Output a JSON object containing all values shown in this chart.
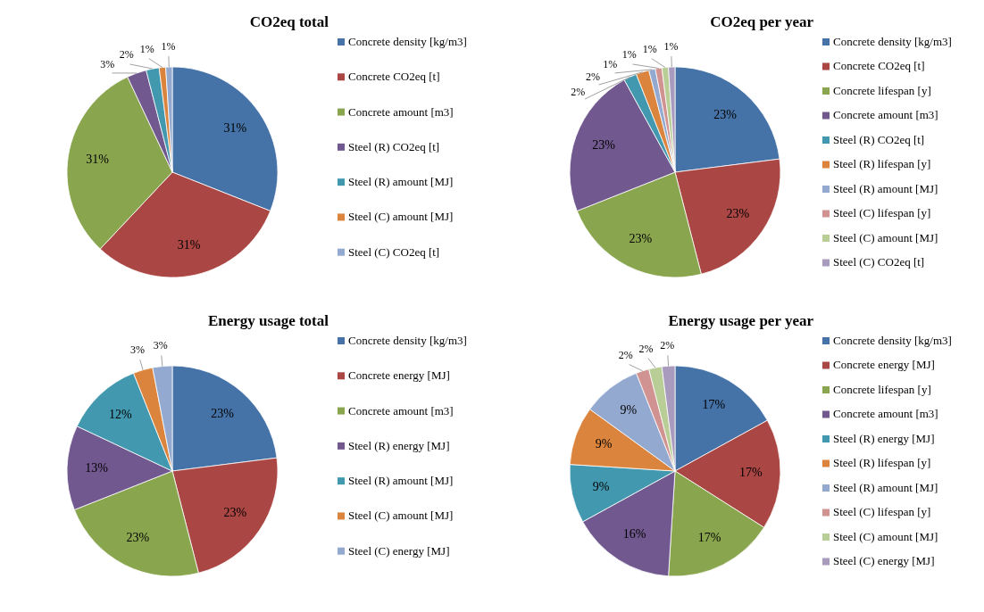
{
  "chart_data": [
    {
      "type": "pie",
      "title": "CO2eq total",
      "categories": [
        "Concrete density [kg/m3]",
        "Concrete CO2eq [t]",
        "Concrete amount [m3]",
        "Steel (R) CO2eq [t]",
        "Steel (R) amount [MJ]",
        "Steel (C) amount [MJ]",
        "Steel (C) CO2eq [t]"
      ],
      "values": [
        31,
        31,
        31,
        3,
        2,
        1,
        1
      ],
      "value_labels": [
        "31%",
        "31%",
        "31%",
        "3%",
        "2%",
        "1%",
        "1%"
      ],
      "colors": [
        "#4572a7",
        "#aa4643",
        "#89a54e",
        "#71588f",
        "#4198af",
        "#db843d",
        "#93a9cf"
      ],
      "legend": "right"
    },
    {
      "type": "pie",
      "title": "CO2eq per year",
      "categories": [
        "Concrete density [kg/m3]",
        "Concrete CO2eq [t]",
        "Concrete lifespan [y]",
        "Concrete amount [m3]",
        "Steel (R) CO2eq [t]",
        "Steel (R) lifespan [y]",
        "Steel (R) amount [MJ]",
        "Steel (C) lifespan [y]",
        "Steel (C) amount [MJ]",
        "Steel (C) CO2eq [t]"
      ],
      "values": [
        23,
        23,
        23,
        23,
        2,
        2,
        1,
        1,
        1,
        1
      ],
      "value_labels": [
        "23%",
        "23%",
        "23%",
        "23%",
        "2%",
        "2%",
        "1%",
        "1%",
        "1%",
        "1%"
      ],
      "colors": [
        "#4572a7",
        "#aa4643",
        "#89a54e",
        "#71588f",
        "#4198af",
        "#db843d",
        "#93a9cf",
        "#d19392",
        "#b9cd96",
        "#a99bbd"
      ],
      "legend": "right"
    },
    {
      "type": "pie",
      "title": "Energy usage total",
      "categories": [
        "Concrete density [kg/m3]",
        "Concrete energy [MJ]",
        "Concrete amount [m3]",
        "Steel (R) energy [MJ]",
        "Steel (R) amount [MJ]",
        "Steel (C) amount [MJ]",
        "Steel (C) energy [MJ]"
      ],
      "values": [
        23,
        23,
        23,
        13,
        12,
        3,
        3
      ],
      "value_labels": [
        "23%",
        "23%",
        "23%",
        "13%",
        "12%",
        "3%",
        "3%"
      ],
      "colors": [
        "#4572a7",
        "#aa4643",
        "#89a54e",
        "#71588f",
        "#4198af",
        "#db843d",
        "#93a9cf"
      ],
      "legend": "right"
    },
    {
      "type": "pie",
      "title": "Energy usage per year",
      "categories": [
        "Concrete density [kg/m3]",
        "Concrete energy [MJ]",
        "Concrete lifespan [y]",
        "Concrete amount [m3]",
        "Steel (R) energy [MJ]",
        "Steel (R) lifespan [y]",
        "Steel (R) amount [MJ]",
        "Steel (C) lifespan [y]",
        "Steel (C) amount [MJ]",
        "Steel (C) energy [MJ]"
      ],
      "values": [
        17,
        17,
        17,
        16,
        9,
        9,
        9,
        2,
        2,
        2
      ],
      "value_labels": [
        "17%",
        "17%",
        "17%",
        "16%",
        "9%",
        "9%",
        "9%",
        "2%",
        "2%",
        "2%"
      ],
      "colors": [
        "#4572a7",
        "#aa4643",
        "#89a54e",
        "#71588f",
        "#4198af",
        "#db843d",
        "#93a9cf",
        "#d19392",
        "#b9cd96",
        "#a99bbd"
      ],
      "legend": "right"
    }
  ]
}
